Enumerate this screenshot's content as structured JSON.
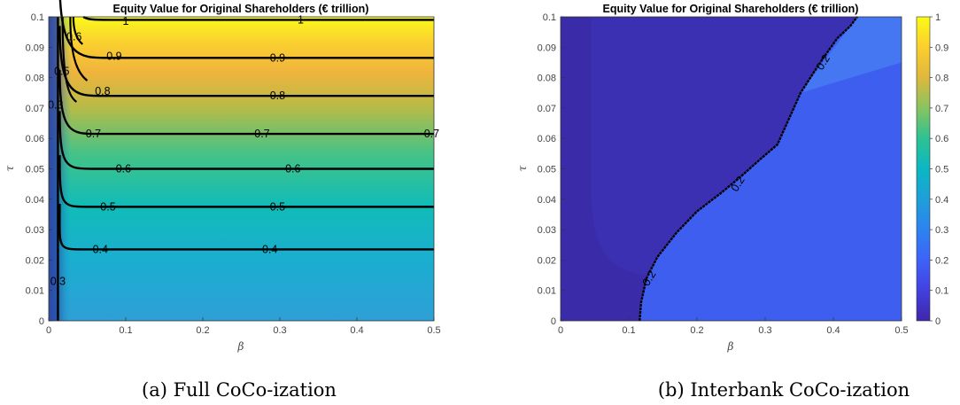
{
  "chart_data": [
    {
      "type": "heatmap",
      "panel_caption": "(a) Full CoCo-ization",
      "title": "Equity Value for Original Shareholders (€ trillion)",
      "xlabel": "β",
      "ylabel": "τ",
      "xlim": [
        0,
        0.5
      ],
      "ylim": [
        0,
        0.1
      ],
      "x_ticks": [
        "0",
        "0.1",
        "0.2",
        "0.3",
        "0.4",
        "0.5"
      ],
      "y_ticks": [
        "0",
        "0.01",
        "0.02",
        "0.03",
        "0.04",
        "0.05",
        "0.06",
        "0.07",
        "0.08",
        "0.09",
        "0.1"
      ],
      "contours": [
        {
          "level": 0.3,
          "labels": [
            {
              "text": "0.3",
              "at": [
                0.012,
                0.013
              ]
            }
          ]
        },
        {
          "level": 0.4,
          "tau": 0.0235,
          "labels": [
            {
              "text": "0.4",
              "at": [
                0.067,
                0.0235
              ]
            },
            {
              "text": "0.4",
              "at": [
                0.287,
                0.0235
              ]
            }
          ]
        },
        {
          "level": 0.5,
          "tau": 0.0375,
          "labels": [
            {
              "text": "0.5",
              "at": [
                0.077,
                0.0375
              ]
            },
            {
              "text": "0.5",
              "at": [
                0.297,
                0.0375
              ]
            }
          ]
        },
        {
          "level": 0.6,
          "tau": 0.05,
          "labels": [
            {
              "text": "0.6",
              "at": [
                0.097,
                0.05
              ]
            },
            {
              "text": "0.6",
              "at": [
                0.317,
                0.05
              ]
            }
          ]
        },
        {
          "level": 0.7,
          "tau": 0.0615,
          "labels": [
            {
              "text": "0.7",
              "at": [
                0.058,
                0.0615
              ]
            },
            {
              "text": "0.7",
              "at": [
                0.277,
                0.0615
              ]
            },
            {
              "text": "0.7",
              "at": [
                0.497,
                0.0615
              ]
            }
          ]
        },
        {
          "level": 0.8,
          "tau": 0.074,
          "labels": [
            {
              "text": "0.8",
              "at": [
                0.07,
                0.0755
              ]
            },
            {
              "text": "0.8",
              "at": [
                0.297,
                0.074
              ]
            }
          ]
        },
        {
          "level": 0.9,
          "tau": 0.0865,
          "labels": [
            {
              "text": "0.9",
              "at": [
                0.085,
                0.087
              ]
            },
            {
              "text": "0.9",
              "at": [
                0.297,
                0.0865
              ]
            }
          ]
        },
        {
          "level": 1.0,
          "tau": 0.099,
          "labels": [
            {
              "text": "1",
              "at": [
                0.1,
                0.0985
              ]
            },
            {
              "text": "1",
              "at": [
                0.327,
                0.099
              ]
            }
          ]
        },
        {
          "level": 0.6,
          "labels": [
            {
              "text": "0.6",
              "at": [
                0.033,
                0.0935
              ]
            }
          ]
        },
        {
          "level": 0.5,
          "labels": [
            {
              "text": "0.5",
              "at": [
                0.017,
                0.082
              ]
            }
          ]
        },
        {
          "level": 0.3,
          "labels": [
            {
              "text": "0.3",
              "at": [
                0.009,
                0.071
              ]
            }
          ]
        }
      ]
    },
    {
      "type": "heatmap",
      "panel_caption": "(b) Interbank CoCo-ization",
      "title": "Equity Value for Original Shareholders (€ trillion)",
      "xlabel": "β",
      "ylabel": "τ",
      "xlim": [
        0,
        0.5
      ],
      "ylim": [
        0,
        0.1
      ],
      "x_ticks": [
        "0",
        "0.1",
        "0.2",
        "0.3",
        "0.4",
        "0.5"
      ],
      "y_ticks": [
        "0",
        "0.01",
        "0.02",
        "0.03",
        "0.04",
        "0.05",
        "0.06",
        "0.07",
        "0.08",
        "0.09",
        "0.1"
      ],
      "contours": [
        {
          "level": 0.2,
          "path": [
            [
              0.116,
              0
            ],
            [
              0.118,
              0.006
            ],
            [
              0.126,
              0.014
            ],
            [
              0.142,
              0.021
            ],
            [
              0.17,
              0.029
            ],
            [
              0.2,
              0.036
            ],
            [
              0.235,
              0.042
            ],
            [
              0.262,
              0.047
            ],
            [
              0.292,
              0.053
            ],
            [
              0.318,
              0.058
            ],
            [
              0.338,
              0.068
            ],
            [
              0.352,
              0.075
            ],
            [
              0.372,
              0.082
            ],
            [
              0.39,
              0.088
            ],
            [
              0.406,
              0.093
            ],
            [
              0.425,
              0.097
            ],
            [
              0.435,
              0.1
            ]
          ],
          "labels": [
            {
              "text": "0.2",
              "at": [
                0.13,
                0.014
              ]
            },
            {
              "text": "0.2",
              "at": [
                0.26,
                0.045
              ]
            },
            {
              "text": "0.2",
              "at": [
                0.385,
                0.085
              ]
            }
          ]
        }
      ],
      "colorbar": {
        "ticks": [
          "0",
          "0.1",
          "0.2",
          "0.3",
          "0.4",
          "0.5",
          "0.6",
          "0.7",
          "0.8",
          "0.9",
          "1"
        ],
        "range": [
          0,
          1
        ]
      }
    }
  ]
}
